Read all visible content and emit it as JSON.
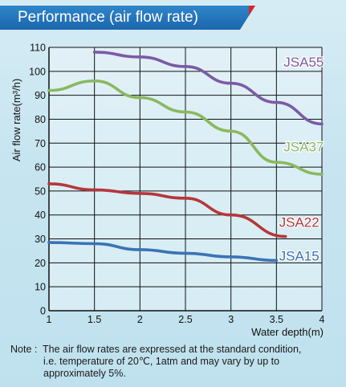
{
  "header": {
    "title": "Performance (air flow rate)"
  },
  "chart_data": {
    "type": "line",
    "xlabel": "Water depth(m)",
    "ylabel": "Air flow rate(m³/h)",
    "xlim": [
      1,
      4
    ],
    "ylim": [
      0,
      110
    ],
    "xticks": [
      "1",
      "1.5",
      "2",
      "2.5",
      "3",
      "3.5",
      "4"
    ],
    "yticks": [
      "0",
      "10",
      "20",
      "30",
      "40",
      "50",
      "60",
      "70",
      "80",
      "90",
      "100",
      "110"
    ],
    "grid": true,
    "series": [
      {
        "name": "JSA55",
        "color": "#7b5aa6",
        "x": [
          1.5,
          2.0,
          2.5,
          3.0,
          3.5,
          4.0
        ],
        "y": [
          108,
          106,
          102,
          95,
          87,
          78
        ]
      },
      {
        "name": "JSA37",
        "color": "#8ab85f",
        "x": [
          1.0,
          1.5,
          2.0,
          2.5,
          3.0,
          3.5,
          4.0
        ],
        "y": [
          92,
          96,
          89,
          83,
          75,
          62,
          57
        ]
      },
      {
        "name": "JSA22",
        "color": "#b5373b",
        "x": [
          1.0,
          1.5,
          2.0,
          2.5,
          3.0,
          3.6
        ],
        "y": [
          53,
          50.5,
          49,
          47,
          40,
          31
        ]
      },
      {
        "name": "JSA15",
        "color": "#3a73b5",
        "x": [
          1.0,
          1.5,
          2.0,
          2.5,
          3.0,
          3.5
        ],
        "y": [
          28.5,
          28,
          25.5,
          24,
          22.5,
          21
        ]
      }
    ],
    "legend": "inline labels at right of each line"
  },
  "note": {
    "prefix": "Note :",
    "line1": "The air flow rates are expressed at the standard condition,",
    "line2": "i.e. temperature of 20℃, 1atm and may vary by up to",
    "line3": "approximately 5%."
  }
}
